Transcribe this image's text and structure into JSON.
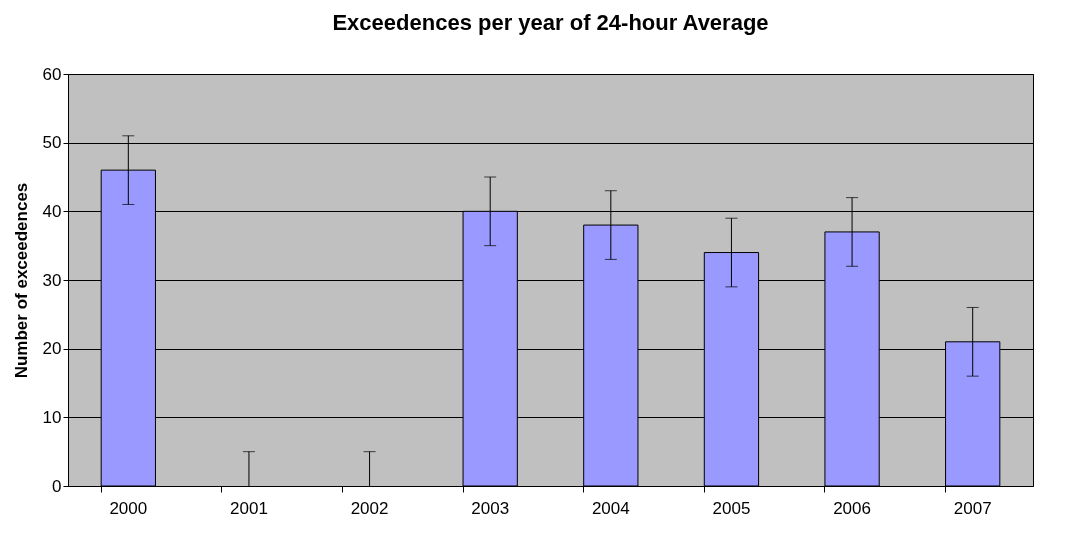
{
  "chart_data": {
    "type": "bar",
    "title": "Exceedences per year of 24-hour Average",
    "ylabel": "Number of exceedences",
    "categories": [
      "2000",
      "2001",
      "2002",
      "2003",
      "2004",
      "2005",
      "2006",
      "2007"
    ],
    "values": [
      46,
      0,
      0,
      40,
      38,
      34,
      37,
      21
    ],
    "errors": [
      5,
      [
        0,
        5
      ],
      [
        0,
        5
      ],
      5,
      5,
      5,
      5,
      5
    ],
    "color": "#9999ff",
    "ylim": [
      0,
      60
    ],
    "yticks": [
      0,
      10,
      20,
      30,
      40,
      50,
      60
    ],
    "grid": "y"
  }
}
